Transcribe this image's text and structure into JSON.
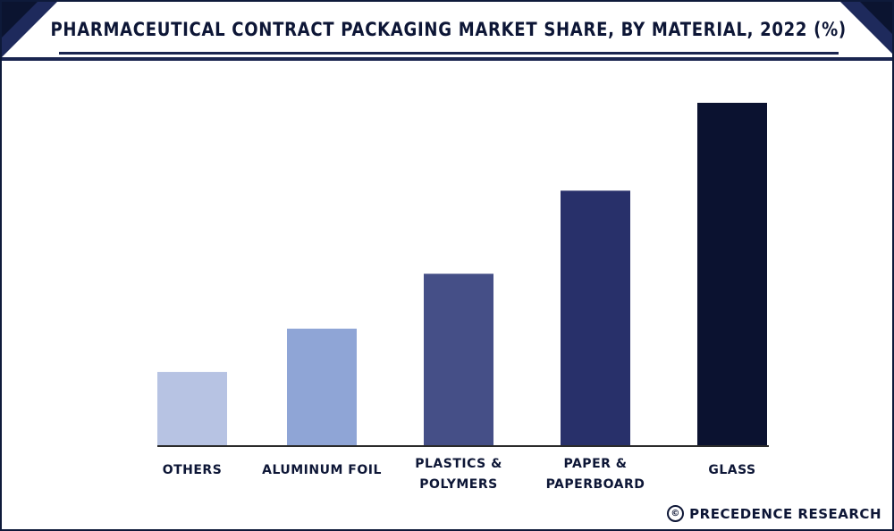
{
  "header": {
    "title": "PHARMACEUTICAL CONTRACT PACKAGING MARKET SHARE, BY MATERIAL, 2022 (%)"
  },
  "footer": {
    "copyright_symbol": "©",
    "source": "PRECEDENCE RESEARCH"
  },
  "colors": {
    "accent": "#1e2a5c",
    "bars": [
      "#b7c3e3",
      "#8fa5d6",
      "#454f87",
      "#28306a",
      "#0b1230"
    ]
  },
  "chart_data": {
    "type": "bar",
    "title": "PHARMACEUTICAL CONTRACT PACKAGING MARKET SHARE, BY MATERIAL, 2022 (%)",
    "categories": [
      "OTHERS",
      "ALUMINUM FOIL",
      "PLASTICS & POLYMERS",
      "PAPER & PAPERBOARD",
      "GLASS"
    ],
    "category_lines": [
      [
        "OTHERS"
      ],
      [
        "ALUMINUM FOIL"
      ],
      [
        "PLASTICS &",
        "POLYMERS"
      ],
      [
        "PAPER &",
        "PAPERBOARD"
      ],
      [
        "GLASS"
      ]
    ],
    "values": [
      10.8,
      17.1,
      25.1,
      37.2,
      50
    ],
    "ylim": [
      0,
      50
    ],
    "xlabel": "",
    "ylabel": "",
    "grid": false,
    "legend": "none"
  }
}
